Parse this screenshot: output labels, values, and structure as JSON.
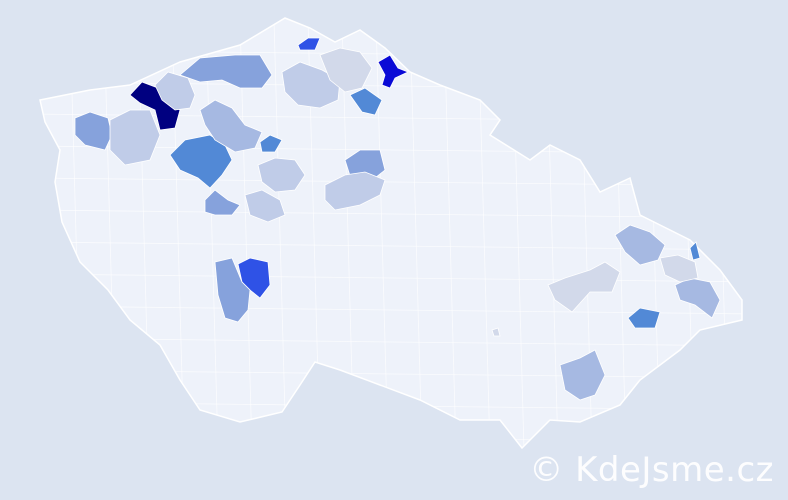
{
  "map": {
    "background": "#dce4f1",
    "base_fill": "#eef2fa",
    "border_color": "#ffffff",
    "palette": {
      "level1": "#d2d9ea",
      "level2": "#c0cce8",
      "level3": "#a6b9e2",
      "level4": "#86a2dc",
      "level5": "#5289d6",
      "level6": "#2f52e6",
      "level7": "#0a0ad6",
      "level8": "#000080"
    }
  },
  "watermark": {
    "text": "© KdeJsme.cz"
  }
}
